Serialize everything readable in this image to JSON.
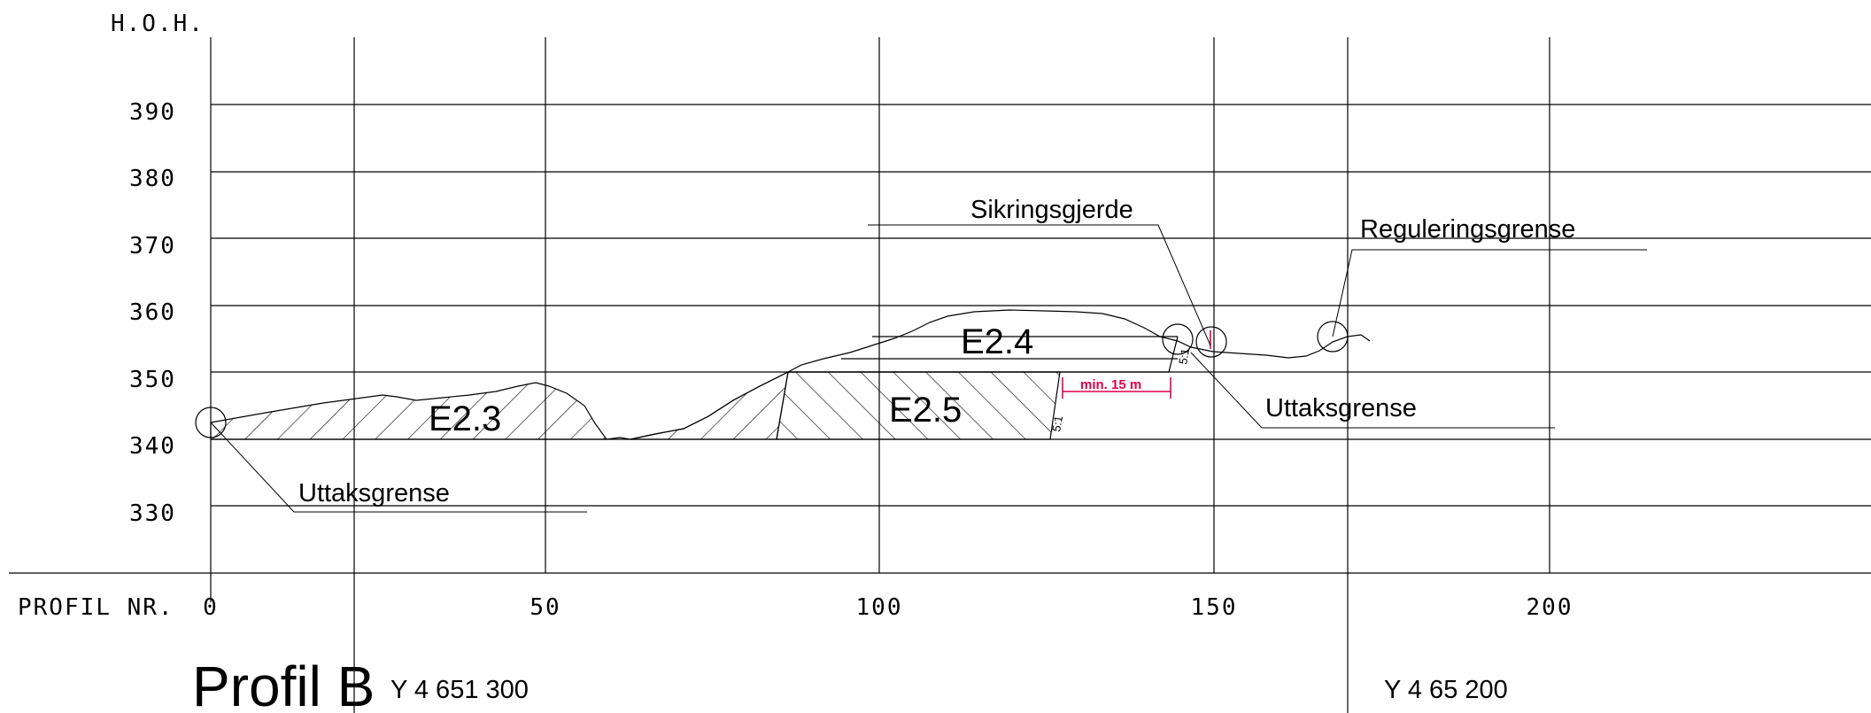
{
  "drawing": {
    "y_axis_title": "H.O.H.",
    "x_axis_title": "PROFIL NR.",
    "elevation_ticks": [
      390,
      380,
      370,
      360,
      350,
      340,
      330
    ],
    "station_ticks": [
      0,
      50,
      100,
      150,
      200
    ],
    "title": "Profil B",
    "coordinates": {
      "left": "Y 4 651 300",
      "right": "Y 4 65 200"
    },
    "zones": {
      "e23": "E2.3",
      "e24": "E2.4",
      "e25": "E2.5"
    },
    "callouts": {
      "uttak_left": "Uttaksgrense",
      "uttak_right": "Uttaksgrense",
      "sikring": "Sikringsgjerde",
      "regulering": "Reguleringsgrense"
    },
    "dimension": "min. 15 m",
    "slopes": {
      "lower": "5:1",
      "upper": "5:1"
    },
    "colors": {
      "dimension": "#e0004d"
    }
  }
}
